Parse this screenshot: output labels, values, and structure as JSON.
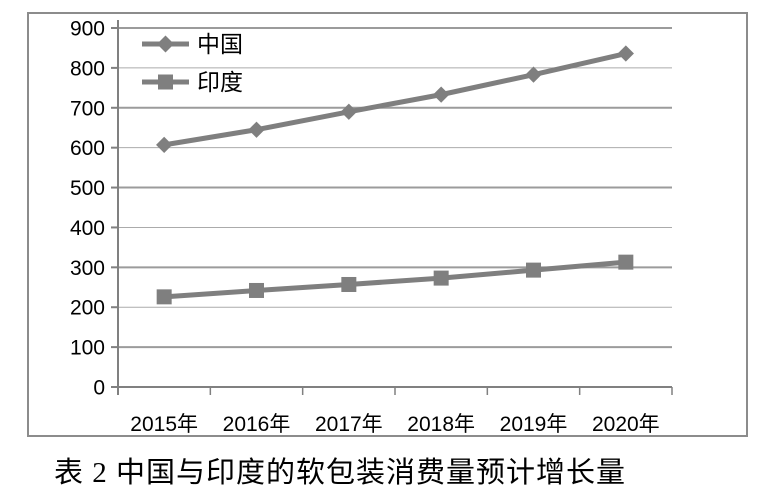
{
  "caption": "表 2 中国与印度的软包装消费量预计增长量",
  "colors": {
    "series_gray": "#7f7f7f",
    "axis_gray": "#808080",
    "grid_thick": "#9b9b9b",
    "grid_thin": "#ababab",
    "frame_gray": "#8c8c8c",
    "text_black": "#000000",
    "background": "#ffffff"
  },
  "chart_data": {
    "type": "line",
    "title": "",
    "xlabel": "",
    "ylabel": "",
    "categories": [
      "2015年",
      "2016年",
      "2017年",
      "2018年",
      "2019年",
      "2020年"
    ],
    "series": [
      {
        "name": "中国",
        "marker": "diamond",
        "values": [
          607,
          645,
          690,
          733,
          783,
          836
        ]
      },
      {
        "name": "印度",
        "marker": "square",
        "values": [
          226,
          242,
          257,
          273,
          293,
          313
        ]
      }
    ],
    "ylim": [
      0,
      900
    ],
    "ytick_step": 100,
    "yticks": [
      0,
      100,
      200,
      300,
      400,
      500,
      600,
      700,
      800,
      900
    ],
    "grid": "horizontal",
    "legend_position": "top-left-inside",
    "legend_entries": [
      "中国",
      "印度"
    ]
  }
}
